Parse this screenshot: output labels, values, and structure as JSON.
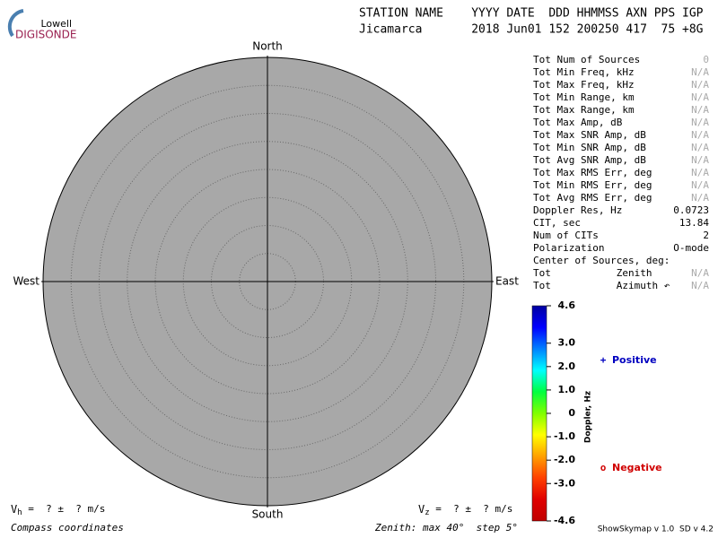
{
  "logo": {
    "top": "Lowell",
    "bottom": "DIGISONDE"
  },
  "header": {
    "line1": "STATION NAME    YYYY DATE  DDD HHMMSS AXN PPS IGP",
    "line2": "Jicamarca       2018 Jun01 152 200250 417  75 +8G"
  },
  "chart_data": {
    "type": "polar-skymap",
    "directions": {
      "north": "North",
      "south": "South",
      "east": "East",
      "west": "West"
    },
    "rlim": [
      0,
      40
    ],
    "rticks": [
      5,
      10,
      15,
      20,
      25,
      30,
      35
    ],
    "plot_color": "#a8a8a8",
    "colorbar": {
      "label": "Doppler, Hz",
      "clim": [
        -4.6,
        4.6
      ],
      "ticks": [
        4.6,
        {
          "value": 3,
          "label": "3.0"
        },
        {
          "value": 2,
          "label": "2.0"
        },
        {
          "value": 1,
          "label": "1.0"
        },
        0,
        {
          "value": -1,
          "label": "-1.0"
        },
        {
          "value": -2,
          "label": "-2.0"
        },
        {
          "value": -3,
          "label": "-3.0"
        },
        -4.6
      ],
      "colors": [
        "#0000a0",
        "#0000ff",
        "#0080ff",
        "#00ffff",
        "#00ff40",
        "#80ff00",
        "#ffff00",
        "#ffa000",
        "#ff4000",
        "#e00000",
        "#c00000"
      ]
    },
    "legend": [
      {
        "symbol": "+",
        "name": "Positive",
        "color": "#0000c0"
      },
      {
        "symbol": "o",
        "name": "Negative",
        "color": "#d00000"
      }
    ]
  },
  "stats": [
    {
      "label": "Tot Num of Sources",
      "value": "0",
      "value_color": "#aaaaaa"
    },
    {
      "label": "Tot Min Freq, kHz",
      "value": "N/A",
      "value_color": "#aaaaaa"
    },
    {
      "label": "Tot Max Freq, kHz",
      "value": "N/A",
      "value_color": "#aaaaaa"
    },
    {
      "label": "Tot Min Range, km",
      "value": "N/A",
      "value_color": "#aaaaaa"
    },
    {
      "label": "Tot Max Range, km",
      "value": "N/A",
      "value_color": "#aaaaaa"
    },
    {
      "label": "Tot Max Amp, dB",
      "value": "N/A",
      "value_color": "#aaaaaa"
    },
    {
      "label": "Tot Max SNR Amp, dB",
      "value": "N/A",
      "value_color": "#aaaaaa"
    },
    {
      "label": "Tot Min SNR Amp, dB",
      "value": "N/A",
      "value_color": "#aaaaaa"
    },
    {
      "label": "Tot Avg SNR Amp, dB",
      "value": "N/A",
      "value_color": "#aaaaaa"
    },
    {
      "label": "Tot Max RMS Err, deg",
      "value": "N/A",
      "value_color": "#aaaaaa"
    },
    {
      "label": "Tot Min RMS Err, deg",
      "value": "N/A",
      "value_color": "#aaaaaa"
    },
    {
      "label": "Tot Avg RMS Err, deg",
      "value": "N/A",
      "value_color": "#aaaaaa"
    },
    {
      "label": "Doppler Res, Hz",
      "value": "0.0723",
      "value_color": "#000000"
    },
    {
      "label": "CIT, sec",
      "value": "13.84",
      "value_color": "#000000"
    },
    {
      "label": "Num of CITs",
      "value": "2",
      "value_color": "#000000"
    },
    {
      "label": "Polarization",
      "value": "O-mode",
      "value_color": "#000000"
    },
    {
      "label": "Center of Sources, deg:"
    },
    {
      "label": "Tot           Zenith",
      "value": "N/A",
      "value_color": "#aaaaaa"
    },
    {
      "label": "Tot           Azimuth ↶",
      "value": "N/A",
      "value_color": "#aaaaaa"
    }
  ],
  "footer": {
    "vh": {
      "v": "V",
      "sub": "h",
      "rest": " =  ? ±  ? m/s"
    },
    "vz": {
      "v": "V",
      "sub": "z",
      "rest": " =  ? ±  ? m/s"
    },
    "coords": "Compass coordinates",
    "zenith": "Zenith: max 40°  step 5°",
    "version": "ShowSkymap v 1.0  SD v 4.2"
  }
}
